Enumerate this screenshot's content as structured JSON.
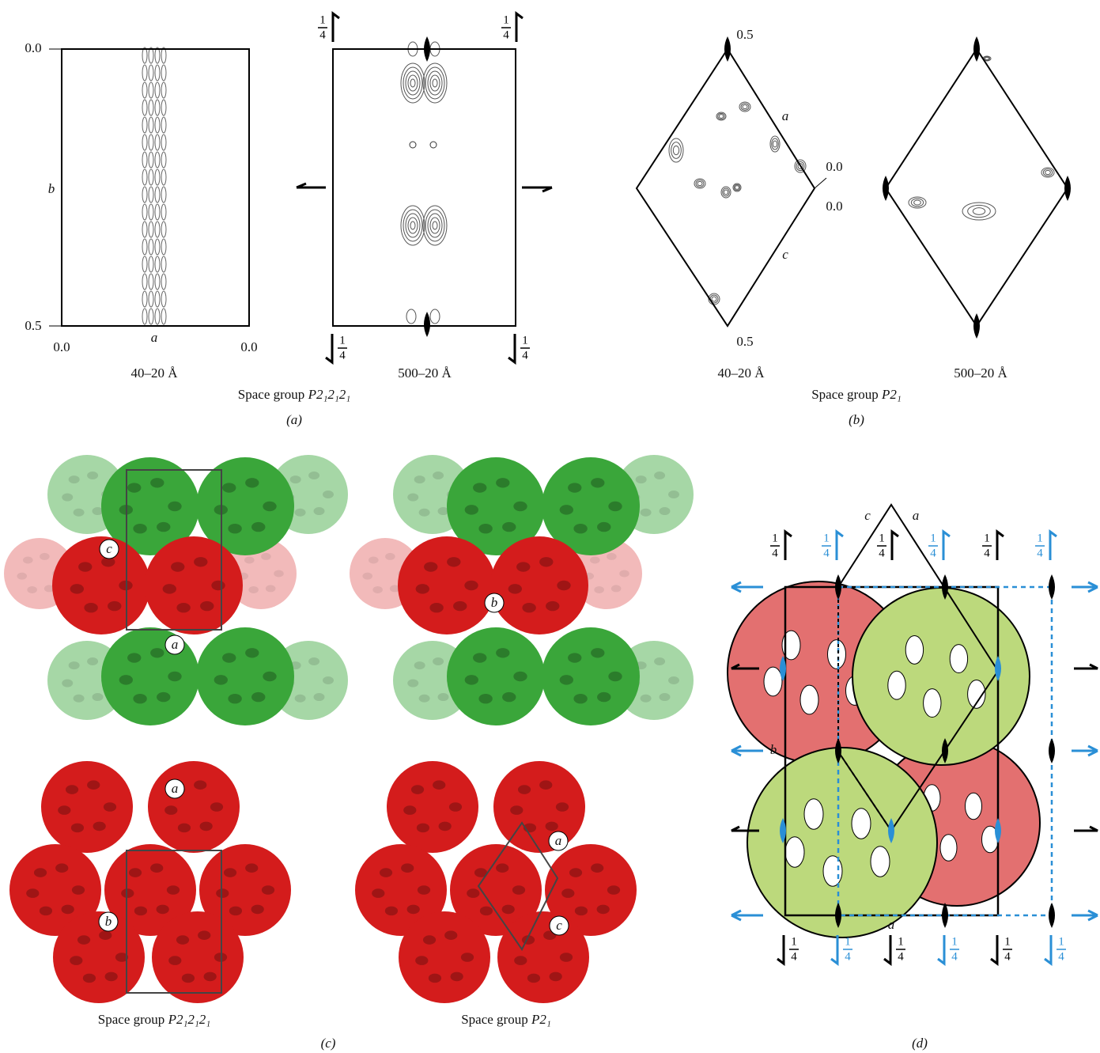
{
  "panel_a": {
    "left_plot": {
      "y_top": "0.0",
      "y_axis": "b",
      "y_bottom": "0.5",
      "x_left": "0.0",
      "x_axis": "a",
      "x_right": "0.0",
      "resolution": "40–20 Å"
    },
    "right_plot": {
      "resolution": "500–20 Å"
    },
    "quarter": {
      "num": "1",
      "den": "4"
    },
    "caption": {
      "prefix": "Space group",
      "symbol": "P2₁2₁2₁"
    },
    "label": "(a)"
  },
  "panel_b": {
    "left_plot": {
      "top": "0.5",
      "a_axis": "a",
      "right_upper": "0.0",
      "right_lower": "0.0",
      "c_axis": "c",
      "bottom": "0.5",
      "resolution": "40–20 Å"
    },
    "right_plot": {
      "resolution": "500–20 Å"
    },
    "caption": {
      "prefix": "Space group",
      "symbol": "P2₁"
    },
    "label": "(b)"
  },
  "panel_c": {
    "top_left": {
      "labels": [
        "c",
        "a"
      ]
    },
    "top_right": {
      "labels": [
        "b"
      ]
    },
    "bottom_left": {
      "labels": [
        "a",
        "b"
      ],
      "caption": {
        "prefix": "Space group",
        "symbol": "P2₁2₁2₁"
      }
    },
    "bottom_right": {
      "labels": [
        "a",
        "c"
      ],
      "caption": {
        "prefix": "Space group",
        "symbol": "P2₁"
      }
    },
    "label": "(c)"
  },
  "panel_d": {
    "axes": [
      "c",
      "a",
      "b",
      "a"
    ],
    "quarter": {
      "num": "1",
      "den": "4"
    },
    "label": "(d)"
  }
}
